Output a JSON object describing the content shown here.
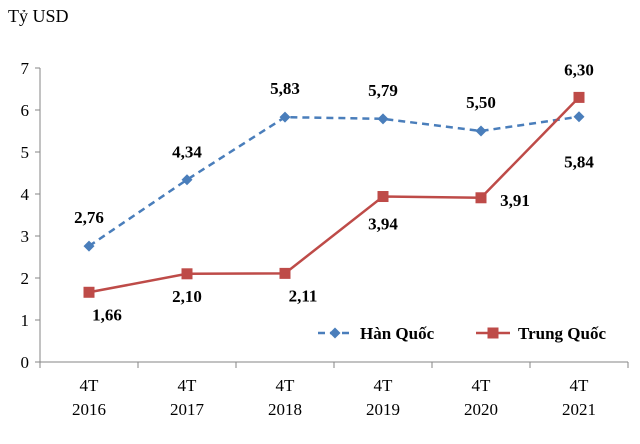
{
  "chart_data": {
    "type": "line",
    "unit_label": "Tỷ USD",
    "ylim": [
      0,
      7
    ],
    "yticks": [
      "0",
      "1",
      "2",
      "3",
      "4",
      "5",
      "6",
      "7"
    ],
    "categories": [
      [
        "4T",
        "2016"
      ],
      [
        "4T",
        "2017"
      ],
      [
        "4T",
        "2018"
      ],
      [
        "4T",
        "2019"
      ],
      [
        "4T",
        "2020"
      ],
      [
        "4T",
        "2021"
      ]
    ],
    "grid": false,
    "legend_position": "bottom-right",
    "series": [
      {
        "name": "Hàn Quốc",
        "color": "#4a7ebb",
        "line_style": "dashed",
        "marker": "diamond",
        "values": [
          2.76,
          4.34,
          5.83,
          5.79,
          5.5,
          5.84
        ],
        "labels": [
          "2,76",
          "4,34",
          "5,83",
          "5,79",
          "5,50",
          "5,84"
        ]
      },
      {
        "name": "Trung Quốc",
        "color": "#be4b48",
        "line_style": "solid",
        "marker": "square",
        "values": [
          1.66,
          2.1,
          2.11,
          3.94,
          3.91,
          6.3
        ],
        "labels": [
          "1,66",
          "2,10",
          "2,11",
          "3,94",
          "3,91",
          "6,30"
        ]
      }
    ]
  }
}
